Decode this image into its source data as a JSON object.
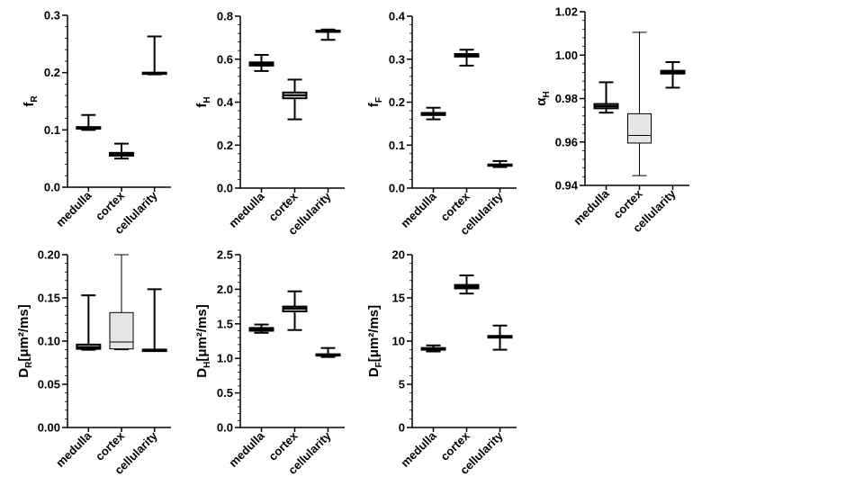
{
  "chart_data": [
    {
      "type": "box",
      "ylabel_main": "f",
      "ylabel_sub": "R",
      "ylabel_unit": "",
      "ylim": [
        0,
        0.3
      ],
      "yticks": [
        "0.0",
        "0.1",
        "0.2",
        "0.3"
      ],
      "categories": [
        "medulla",
        "cortex",
        "cellularity"
      ],
      "boxes": [
        {
          "min": 0.1,
          "q1": 0.102,
          "median": 0.103,
          "q3": 0.105,
          "max": 0.126
        },
        {
          "min": 0.05,
          "q1": 0.055,
          "median": 0.057,
          "q3": 0.06,
          "max": 0.076
        },
        {
          "min": 0.197,
          "q1": 0.198,
          "median": 0.199,
          "q3": 0.2,
          "max": 0.263
        }
      ]
    },
    {
      "type": "box",
      "ylabel_main": "f",
      "ylabel_sub": "H",
      "ylabel_unit": "",
      "ylim": [
        0,
        0.8
      ],
      "yticks": [
        "0.0",
        "0.2",
        "0.4",
        "0.6",
        "0.8"
      ],
      "categories": [
        "medulla",
        "cortex",
        "cellularity"
      ],
      "boxes": [
        {
          "min": 0.545,
          "q1": 0.57,
          "median": 0.578,
          "q3": 0.585,
          "max": 0.62
        },
        {
          "min": 0.32,
          "q1": 0.418,
          "median": 0.432,
          "q3": 0.445,
          "max": 0.505
        },
        {
          "min": 0.69,
          "q1": 0.728,
          "median": 0.73,
          "q3": 0.733,
          "max": 0.738
        }
      ]
    },
    {
      "type": "box",
      "ylabel_main": "f",
      "ylabel_sub": "F",
      "ylabel_unit": "",
      "ylim": [
        0,
        0.4
      ],
      "yticks": [
        "0.0",
        "0.1",
        "0.2",
        "0.3",
        "0.4"
      ],
      "categories": [
        "medulla",
        "cortex",
        "cellularity"
      ],
      "boxes": [
        {
          "min": 0.16,
          "q1": 0.17,
          "median": 0.172,
          "q3": 0.175,
          "max": 0.187
        },
        {
          "min": 0.285,
          "q1": 0.306,
          "median": 0.309,
          "q3": 0.312,
          "max": 0.322
        },
        {
          "min": 0.049,
          "q1": 0.052,
          "median": 0.053,
          "q3": 0.055,
          "max": 0.063
        }
      ]
    },
    {
      "type": "box",
      "ylabel_main": "α",
      "ylabel_sub": "H",
      "ylabel_unit": "",
      "ylim": [
        0.94,
        1.02
      ],
      "yticks": [
        "0.94",
        "0.96",
        "0.98",
        "1.00",
        "1.02"
      ],
      "categories": [
        "medulla",
        "cortex",
        "cellularity"
      ],
      "boxes": [
        {
          "min": 0.9735,
          "q1": 0.9755,
          "median": 0.9765,
          "q3": 0.9775,
          "max": 0.9875
        },
        {
          "min": 0.9445,
          "q1": 0.9595,
          "median": 0.963,
          "q3": 0.973,
          "max": 1.0105,
          "filled": true
        },
        {
          "min": 0.985,
          "q1": 0.9915,
          "median": 0.9922,
          "q3": 0.9928,
          "max": 0.9968
        }
      ]
    },
    {
      "type": "box",
      "ylabel_main": "D",
      "ylabel_sub": "R",
      "ylabel_unit": "[μm²/ms]",
      "ylim": [
        0,
        0.2
      ],
      "yticks": [
        "0.00",
        "0.05",
        "0.10",
        "0.15",
        "0.20"
      ],
      "categories": [
        "medulla",
        "cortex",
        "cellularity"
      ],
      "boxes": [
        {
          "min": 0.09,
          "q1": 0.091,
          "median": 0.093,
          "q3": 0.096,
          "max": 0.153
        },
        {
          "min": 0.09,
          "q1": 0.091,
          "median": 0.099,
          "q3": 0.133,
          "max": 0.2,
          "filled": true
        },
        {
          "min": 0.09,
          "q1": 0.09,
          "median": 0.09,
          "q3": 0.09,
          "max": 0.16
        }
      ]
    },
    {
      "type": "box",
      "ylabel_main": "D",
      "ylabel_sub": "H",
      "ylabel_unit": "[μm²/ms]",
      "ylim": [
        0,
        2.5
      ],
      "yticks": [
        "0.0",
        "0.5",
        "1.0",
        "1.5",
        "2.0",
        "2.5"
      ],
      "categories": [
        "medulla",
        "cortex",
        "cellularity"
      ],
      "boxes": [
        {
          "min": 1.37,
          "q1": 1.4,
          "median": 1.42,
          "q3": 1.44,
          "max": 1.49
        },
        {
          "min": 1.41,
          "q1": 1.68,
          "median": 1.72,
          "q3": 1.75,
          "max": 1.97
        },
        {
          "min": 1.02,
          "q1": 1.04,
          "median": 1.05,
          "q3": 1.06,
          "max": 1.15
        }
      ]
    },
    {
      "type": "box",
      "ylabel_main": "D",
      "ylabel_sub": "F",
      "ylabel_unit": "[μm²/ms]",
      "ylim": [
        0,
        20
      ],
      "yticks": [
        "0",
        "5",
        "10",
        "15",
        "20"
      ],
      "categories": [
        "medulla",
        "cortex",
        "cellularity"
      ],
      "boxes": [
        {
          "min": 8.8,
          "q1": 9.0,
          "median": 9.1,
          "q3": 9.2,
          "max": 9.5
        },
        {
          "min": 15.5,
          "q1": 16.1,
          "median": 16.3,
          "q3": 16.5,
          "max": 17.6
        },
        {
          "min": 9.0,
          "q1": 10.4,
          "median": 10.5,
          "q3": 10.6,
          "max": 11.8
        }
      ]
    }
  ]
}
